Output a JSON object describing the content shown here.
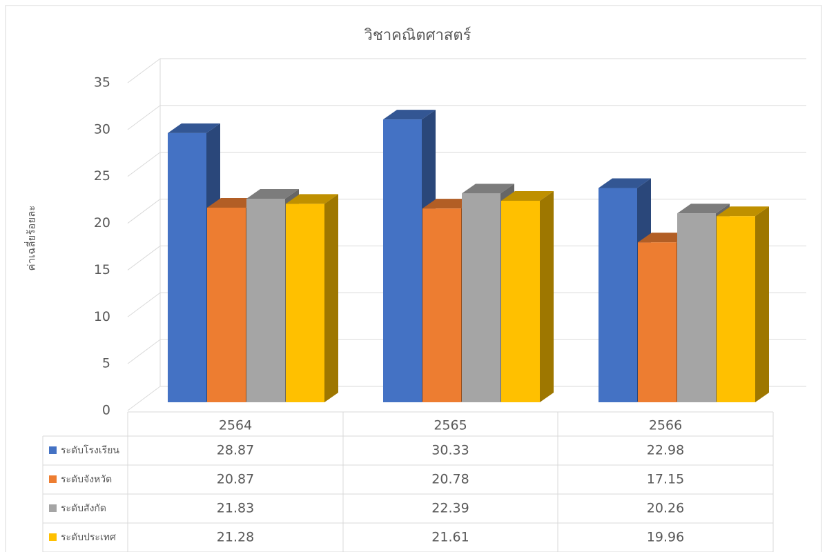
{
  "chart_data": {
    "type": "bar3d",
    "title": "วิชาคณิตศาสตร์",
    "y_label": "ค่าเฉลี่ยร้อยละ",
    "categories": [
      "2564",
      "2565",
      "2566"
    ],
    "series": [
      {
        "name": "ระดับโรงเรียน",
        "color": "#4472c4",
        "values": [
          28.87,
          30.33,
          22.98
        ]
      },
      {
        "name": "ระดับจังหวัด",
        "color": "#ed7d31",
        "values": [
          20.87,
          20.78,
          17.15
        ]
      },
      {
        "name": "ระดับสังกัด",
        "color": "#a5a5a5",
        "values": [
          21.83,
          22.39,
          20.26
        ]
      },
      {
        "name": "ระดับประเทศ",
        "color": "#ffc000",
        "values": [
          21.28,
          21.61,
          19.96
        ]
      }
    ],
    "ylim": [
      0,
      35
    ],
    "yticks": [
      0,
      5,
      10,
      15,
      20,
      25,
      30,
      35
    ],
    "grid": true,
    "legend": "table"
  }
}
